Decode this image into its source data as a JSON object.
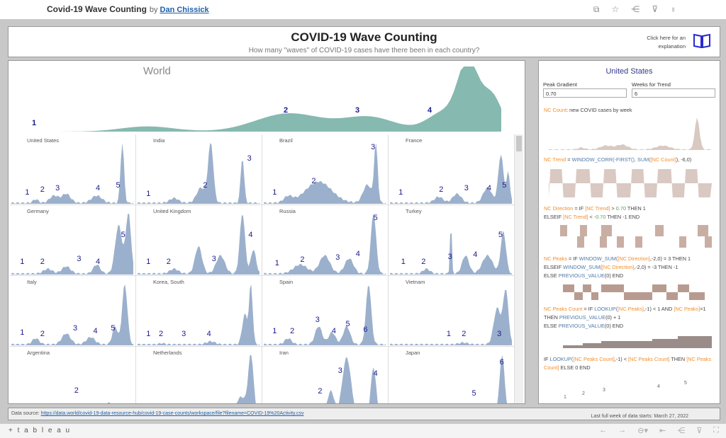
{
  "topbar": {
    "title": "Covid-19 Wave Counting",
    "by": "by",
    "author": "Dan Chissick",
    "icons": [
      "copy-icon",
      "star-icon",
      "share-icon",
      "download-icon",
      "badge-icon"
    ]
  },
  "header": {
    "title": "COVID-19 Wave Counting",
    "subtitle": "How many \"waves\" of COVID-19 cases have there been in each country?",
    "link_line1": "Click here for an",
    "link_line2": "explanation",
    "icon": "book-icon"
  },
  "world": {
    "label": "World",
    "waves": [
      "1",
      "2",
      "3",
      "4"
    ],
    "color": "#86b9b0"
  },
  "countries": [
    {
      "name": "United States",
      "waves": [
        "1",
        "2",
        "3",
        "4",
        "5"
      ]
    },
    {
      "name": "India",
      "waves": [
        "1",
        "2",
        "3"
      ]
    },
    {
      "name": "Brazil",
      "waves": [
        "1",
        "2",
        "3"
      ]
    },
    {
      "name": "France",
      "waves": [
        "1",
        "2",
        "3",
        "4",
        "5"
      ]
    },
    {
      "name": "Germany",
      "waves": [
        "1",
        "2",
        "3",
        "4",
        "5"
      ]
    },
    {
      "name": "United Kingdom",
      "waves": [
        "1",
        "2",
        "3",
        "4"
      ]
    },
    {
      "name": "Russia",
      "waves": [
        "1",
        "2",
        "3",
        "4",
        "5"
      ]
    },
    {
      "name": "Turkey",
      "waves": [
        "1",
        "2",
        "3",
        "4",
        "5"
      ]
    },
    {
      "name": "Italy",
      "waves": [
        "1",
        "2",
        "3",
        "4",
        "5"
      ]
    },
    {
      "name": "Korea, South",
      "waves": [
        "1",
        "2",
        "3",
        "4"
      ]
    },
    {
      "name": "Spain",
      "waves": [
        "1",
        "2",
        "3",
        "4",
        "5",
        "6"
      ]
    },
    {
      "name": "Vietnam",
      "waves": [
        "1",
        "2",
        "3"
      ]
    },
    {
      "name": "Argentina",
      "waves": [
        "2"
      ]
    },
    {
      "name": "Netherlands",
      "waves": []
    },
    {
      "name": "Iran",
      "waves": [
        "2",
        "3",
        "4"
      ]
    },
    {
      "name": "Japan",
      "waves": [
        "5",
        "6"
      ]
    }
  ],
  "country_color": "#9bb0cc",
  "side": {
    "title": "United States",
    "peak_gradient_label": "Peak Gradient",
    "peak_gradient_value": "0.70",
    "weeks_label": "Weeks for Trend",
    "weeks_value": "6",
    "f1": {
      "a": "NC Count",
      "b": ": new COVID cases by week"
    },
    "f2": {
      "a": "NC Trend",
      "b": " = ",
      "c": "WINDOW_CORR(-FIRST(), SUM(",
      "d": "[NC Count]",
      "e": "), -6,0)"
    },
    "f3": {
      "a": "NC Direction",
      "b": " = IF ",
      "c": "[NC Trend]",
      "d": " > ",
      "e": "0.70",
      "f": " THEN 1",
      "g": "ELSEIF ",
      "h": "[NC Trend]",
      "i": " < ",
      "j": "-0.70",
      "k": " THEN -1 END"
    },
    "f4": {
      "a": "NC Peaks",
      "b": " = IF ",
      "c": "WINDOW_SUM(",
      "d": "[NC Direction]",
      "e": ",-2,0) = 3 THEN 1",
      "f": "ELSEIF ",
      "g": "WINDOW_SUM(",
      "h": "[NC Direction]",
      "i": ",-2,0) = -3 THEN -1",
      "j": "ELSE ",
      "k": "PREVIOUS_VALUE",
      "l": "(0) END"
    },
    "f5": {
      "a": "NC Peaks Count",
      "b": " = IF ",
      "c": "LOOKUP(",
      "d": "[NC Peaks]",
      "e": ",-1) < 1 AND ",
      "f": "[NC Peaks]",
      "g": "=1",
      "h": "THEN ",
      "i": "PREVIOUS_VALUE",
      "j": "(0) + 1",
      "k": "ELSE ",
      "l": "PREVIOUS_VALUE",
      "m": "(0) END"
    },
    "f6": {
      "a": "IF ",
      "b": "LOOKUP(",
      "c": "[NC Peaks Count]",
      "d": ",-1) < ",
      "e": "[NC Peaks Count]",
      "f": " THEN ",
      "g": "[NC Peaks Count]",
      "h": " ELSE 0 END"
    },
    "peaks": [
      "1",
      "2",
      "3",
      "4",
      "5"
    ],
    "color": "#d9c9c2",
    "count_color": "#9a8c88"
  },
  "footer": {
    "source_label": "Data source:",
    "source_url": "https://data.world/covid-19-data-resource-hub/covid-19-case-counts/workspace/file?filename=COVID-19%20Activity.csv",
    "last_week": "Last full week of data starts: March 27, 2022"
  },
  "bottom": {
    "logo": "+ t a b l e a u",
    "icons": [
      "undo-icon",
      "redo-icon",
      "revert-icon",
      "reset-icon",
      "share-icon",
      "download-icon",
      "fullscreen-icon"
    ]
  }
}
